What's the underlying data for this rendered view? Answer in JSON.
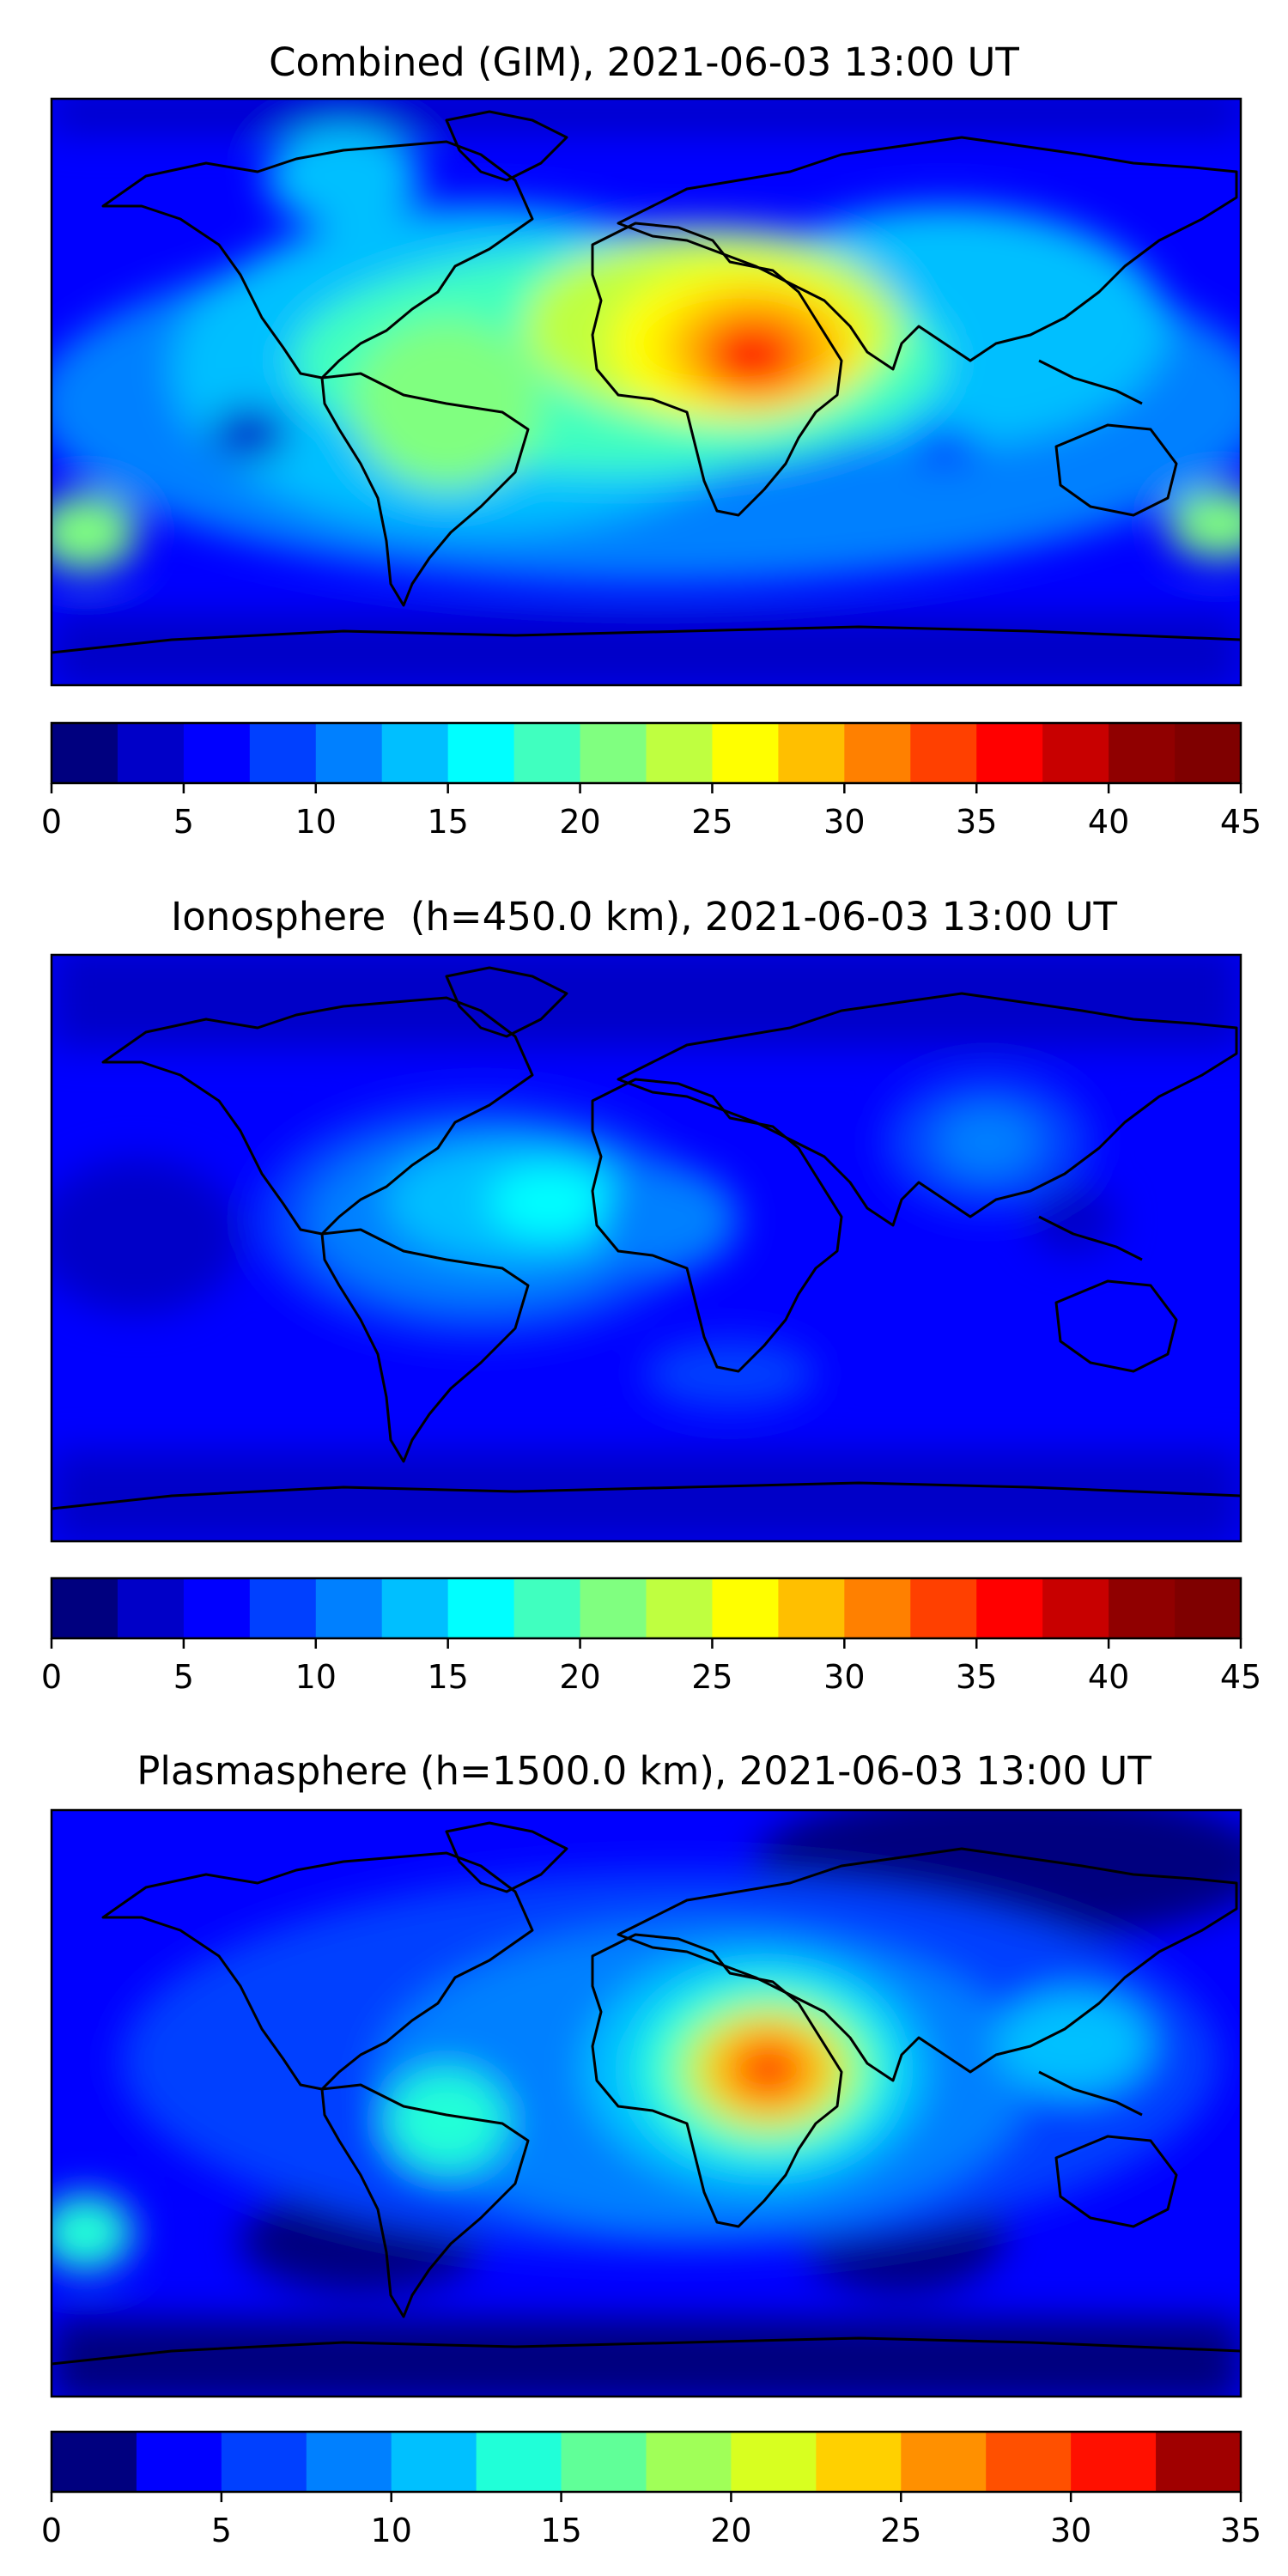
{
  "maps": [
    {
      "title": "Combined (GIM), 2021-06-03 13:00 UT",
      "levels": [
        0,
        2.5,
        5,
        7.5,
        10,
        12.5,
        15,
        17.5,
        20,
        22.5,
        25,
        27.5,
        30,
        32.5,
        35,
        37.5,
        40,
        42.5,
        45
      ],
      "tick_labels": [
        "0",
        "5",
        "10",
        "15",
        "20",
        "25",
        "30",
        "35",
        "40",
        "45"
      ],
      "tick_values": [
        0,
        5,
        10,
        15,
        20,
        25,
        30,
        35,
        40,
        45
      ],
      "colors": [
        "#00007f",
        "#0000c8",
        "#0000ff",
        "#0040ff",
        "#0080ff",
        "#00bfff",
        "#00ffff",
        "#40ffbf",
        "#80ff80",
        "#bfff40",
        "#ffff00",
        "#ffbf00",
        "#ff8000",
        "#ff4000",
        "#ff0000",
        "#c80000",
        "#900000",
        "#7f0000"
      ]
    },
    {
      "title": "Ionosphere  (h=450.0 km), 2021-06-03 13:00 UT",
      "levels": [
        0,
        2.5,
        5,
        7.5,
        10,
        12.5,
        15,
        17.5,
        20,
        22.5,
        25,
        27.5,
        30,
        32.5,
        35,
        37.5,
        40,
        42.5,
        45
      ],
      "tick_labels": [
        "0",
        "5",
        "10",
        "15",
        "20",
        "25",
        "30",
        "35",
        "40",
        "45"
      ],
      "tick_values": [
        0,
        5,
        10,
        15,
        20,
        25,
        30,
        35,
        40,
        45
      ],
      "colors": [
        "#00007f",
        "#0000c8",
        "#0000ff",
        "#0040ff",
        "#0080ff",
        "#00bfff",
        "#00ffff",
        "#40ffbf",
        "#80ff80",
        "#bfff40",
        "#ffff00",
        "#ffbf00",
        "#ff8000",
        "#ff4000",
        "#ff0000",
        "#c80000",
        "#900000",
        "#7f0000"
      ]
    },
    {
      "title": "Plasmasphere (h=1500.0 km), 2021-06-03 13:00 UT",
      "levels": [
        0,
        2.5,
        5,
        7.5,
        10,
        12.5,
        15,
        17.5,
        20,
        22.5,
        25,
        27.5,
        30,
        32.5,
        35
      ],
      "tick_labels": [
        "0",
        "5",
        "10",
        "15",
        "20",
        "25",
        "30",
        "35"
      ],
      "tick_values": [
        0,
        5,
        10,
        15,
        20,
        25,
        30,
        35
      ],
      "colors": [
        "#00007f",
        "#0000ff",
        "#0040ff",
        "#0080ff",
        "#00c0ff",
        "#20ffd8",
        "#60ff98",
        "#a0ff58",
        "#d8ff20",
        "#ffd000",
        "#ff9000",
        "#ff5000",
        "#ff1000",
        "#a00000"
      ]
    }
  ]
}
